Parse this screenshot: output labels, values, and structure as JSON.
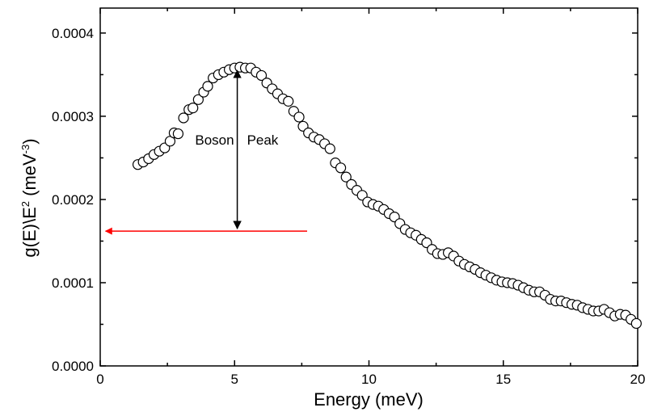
{
  "chart_data": {
    "type": "scatter",
    "xlabel": "Energy (meV)",
    "ylabel": "g(E)\\E",
    "ylabel_sup1": "2",
    "ylabel_unit": " (meV",
    "ylabel_sup2": "-3",
    "ylabel_close": ")",
    "xlim": [
      0,
      20
    ],
    "ylim": [
      0,
      0.00043
    ],
    "x_ticks": [
      0,
      5,
      10,
      15,
      20
    ],
    "x_tick_labels": [
      "0",
      "5",
      "10",
      "15",
      "20"
    ],
    "y_ticks": [
      0,
      0.0001,
      0.0002,
      0.0003,
      0.0004
    ],
    "y_tick_labels": [
      "0.0000",
      "0.0001",
      "0.0002",
      "0.0003",
      "0.0004"
    ],
    "grid": false,
    "marker": "open-circle",
    "annotation": {
      "text_left": "Boson",
      "text_right": "Peak",
      "arrow_x": 5.1,
      "arrow_y_top": 0.000355,
      "arrow_y_bottom": 0.000165,
      "arrow_color": "#000000"
    },
    "red_arrow": {
      "color": "#ff0000",
      "y": 0.000162,
      "x_from": 7.7,
      "x_to": 0.2
    },
    "points": [
      [
        1.4,
        0.000242
      ],
      [
        1.6,
        0.000245
      ],
      [
        1.8,
        0.000249
      ],
      [
        2.0,
        0.000254
      ],
      [
        2.2,
        0.000258
      ],
      [
        2.4,
        0.000262
      ],
      [
        2.6,
        0.00027
      ],
      [
        2.75,
        0.00028
      ],
      [
        2.9,
        0.000279
      ],
      [
        3.1,
        0.000298
      ],
      [
        3.3,
        0.000308
      ],
      [
        3.45,
        0.00031
      ],
      [
        3.65,
        0.00032
      ],
      [
        3.85,
        0.000329
      ],
      [
        4.0,
        0.000336
      ],
      [
        4.2,
        0.000346
      ],
      [
        4.4,
        0.00035
      ],
      [
        4.6,
        0.000353
      ],
      [
        4.8,
        0.000356
      ],
      [
        5.0,
        0.000358
      ],
      [
        5.2,
        0.000359
      ],
      [
        5.4,
        0.000358
      ],
      [
        5.6,
        0.000358
      ],
      [
        5.8,
        0.000353
      ],
      [
        6.0,
        0.000349
      ],
      [
        6.2,
        0.00034
      ],
      [
        6.4,
        0.000333
      ],
      [
        6.6,
        0.000327
      ],
      [
        6.8,
        0.000321
      ],
      [
        7.0,
        0.000318
      ],
      [
        7.2,
        0.000306
      ],
      [
        7.4,
        0.000299
      ],
      [
        7.55,
        0.000288
      ],
      [
        7.75,
        0.00028
      ],
      [
        7.95,
        0.000275
      ],
      [
        8.15,
        0.000272
      ],
      [
        8.35,
        0.000267
      ],
      [
        8.55,
        0.000261
      ],
      [
        8.75,
        0.000244
      ],
      [
        8.95,
        0.000238
      ],
      [
        9.15,
        0.000227
      ],
      [
        9.35,
        0.000218
      ],
      [
        9.55,
        0.000211
      ],
      [
        9.75,
        0.000205
      ],
      [
        9.95,
        0.000197
      ],
      [
        10.15,
        0.000194
      ],
      [
        10.35,
        0.000192
      ],
      [
        10.55,
        0.000188
      ],
      [
        10.75,
        0.000183
      ],
      [
        10.95,
        0.000179
      ],
      [
        11.15,
        0.000171
      ],
      [
        11.35,
        0.000164
      ],
      [
        11.55,
        0.00016
      ],
      [
        11.75,
        0.000157
      ],
      [
        11.95,
        0.000152
      ],
      [
        12.15,
        0.000148
      ],
      [
        12.35,
        0.00014
      ],
      [
        12.55,
        0.000135
      ],
      [
        12.75,
        0.000134
      ],
      [
        12.95,
        0.000136
      ],
      [
        13.15,
        0.000132
      ],
      [
        13.35,
        0.000126
      ],
      [
        13.55,
        0.000122
      ],
      [
        13.75,
        0.000119
      ],
      [
        13.95,
        0.000116
      ],
      [
        14.15,
        0.000112
      ],
      [
        14.35,
        0.000109
      ],
      [
        14.55,
        0.000106
      ],
      [
        14.75,
        0.000103
      ],
      [
        14.95,
        0.000101
      ],
      [
        15.15,
        0.0001
      ],
      [
        15.35,
        9.9e-05
      ],
      [
        15.55,
        9.7e-05
      ],
      [
        15.75,
        9.4e-05
      ],
      [
        15.95,
        9.1e-05
      ],
      [
        16.15,
        8.9e-05
      ],
      [
        16.35,
        8.9e-05
      ],
      [
        16.55,
        8.5e-05
      ],
      [
        16.75,
        8e-05
      ],
      [
        16.95,
        7.8e-05
      ],
      [
        17.15,
        7.8e-05
      ],
      [
        17.35,
        7.6e-05
      ],
      [
        17.55,
        7.4e-05
      ],
      [
        17.75,
        7.3e-05
      ],
      [
        17.95,
        7e-05
      ],
      [
        18.15,
        6.8e-05
      ],
      [
        18.35,
        6.6e-05
      ],
      [
        18.55,
        6.6e-05
      ],
      [
        18.75,
        6.8e-05
      ],
      [
        18.95,
        6.4e-05
      ],
      [
        19.15,
        6e-05
      ],
      [
        19.35,
        6.2e-05
      ],
      [
        19.55,
        6.1e-05
      ],
      [
        19.75,
        5.6e-05
      ],
      [
        19.95,
        5.1e-05
      ]
    ]
  }
}
